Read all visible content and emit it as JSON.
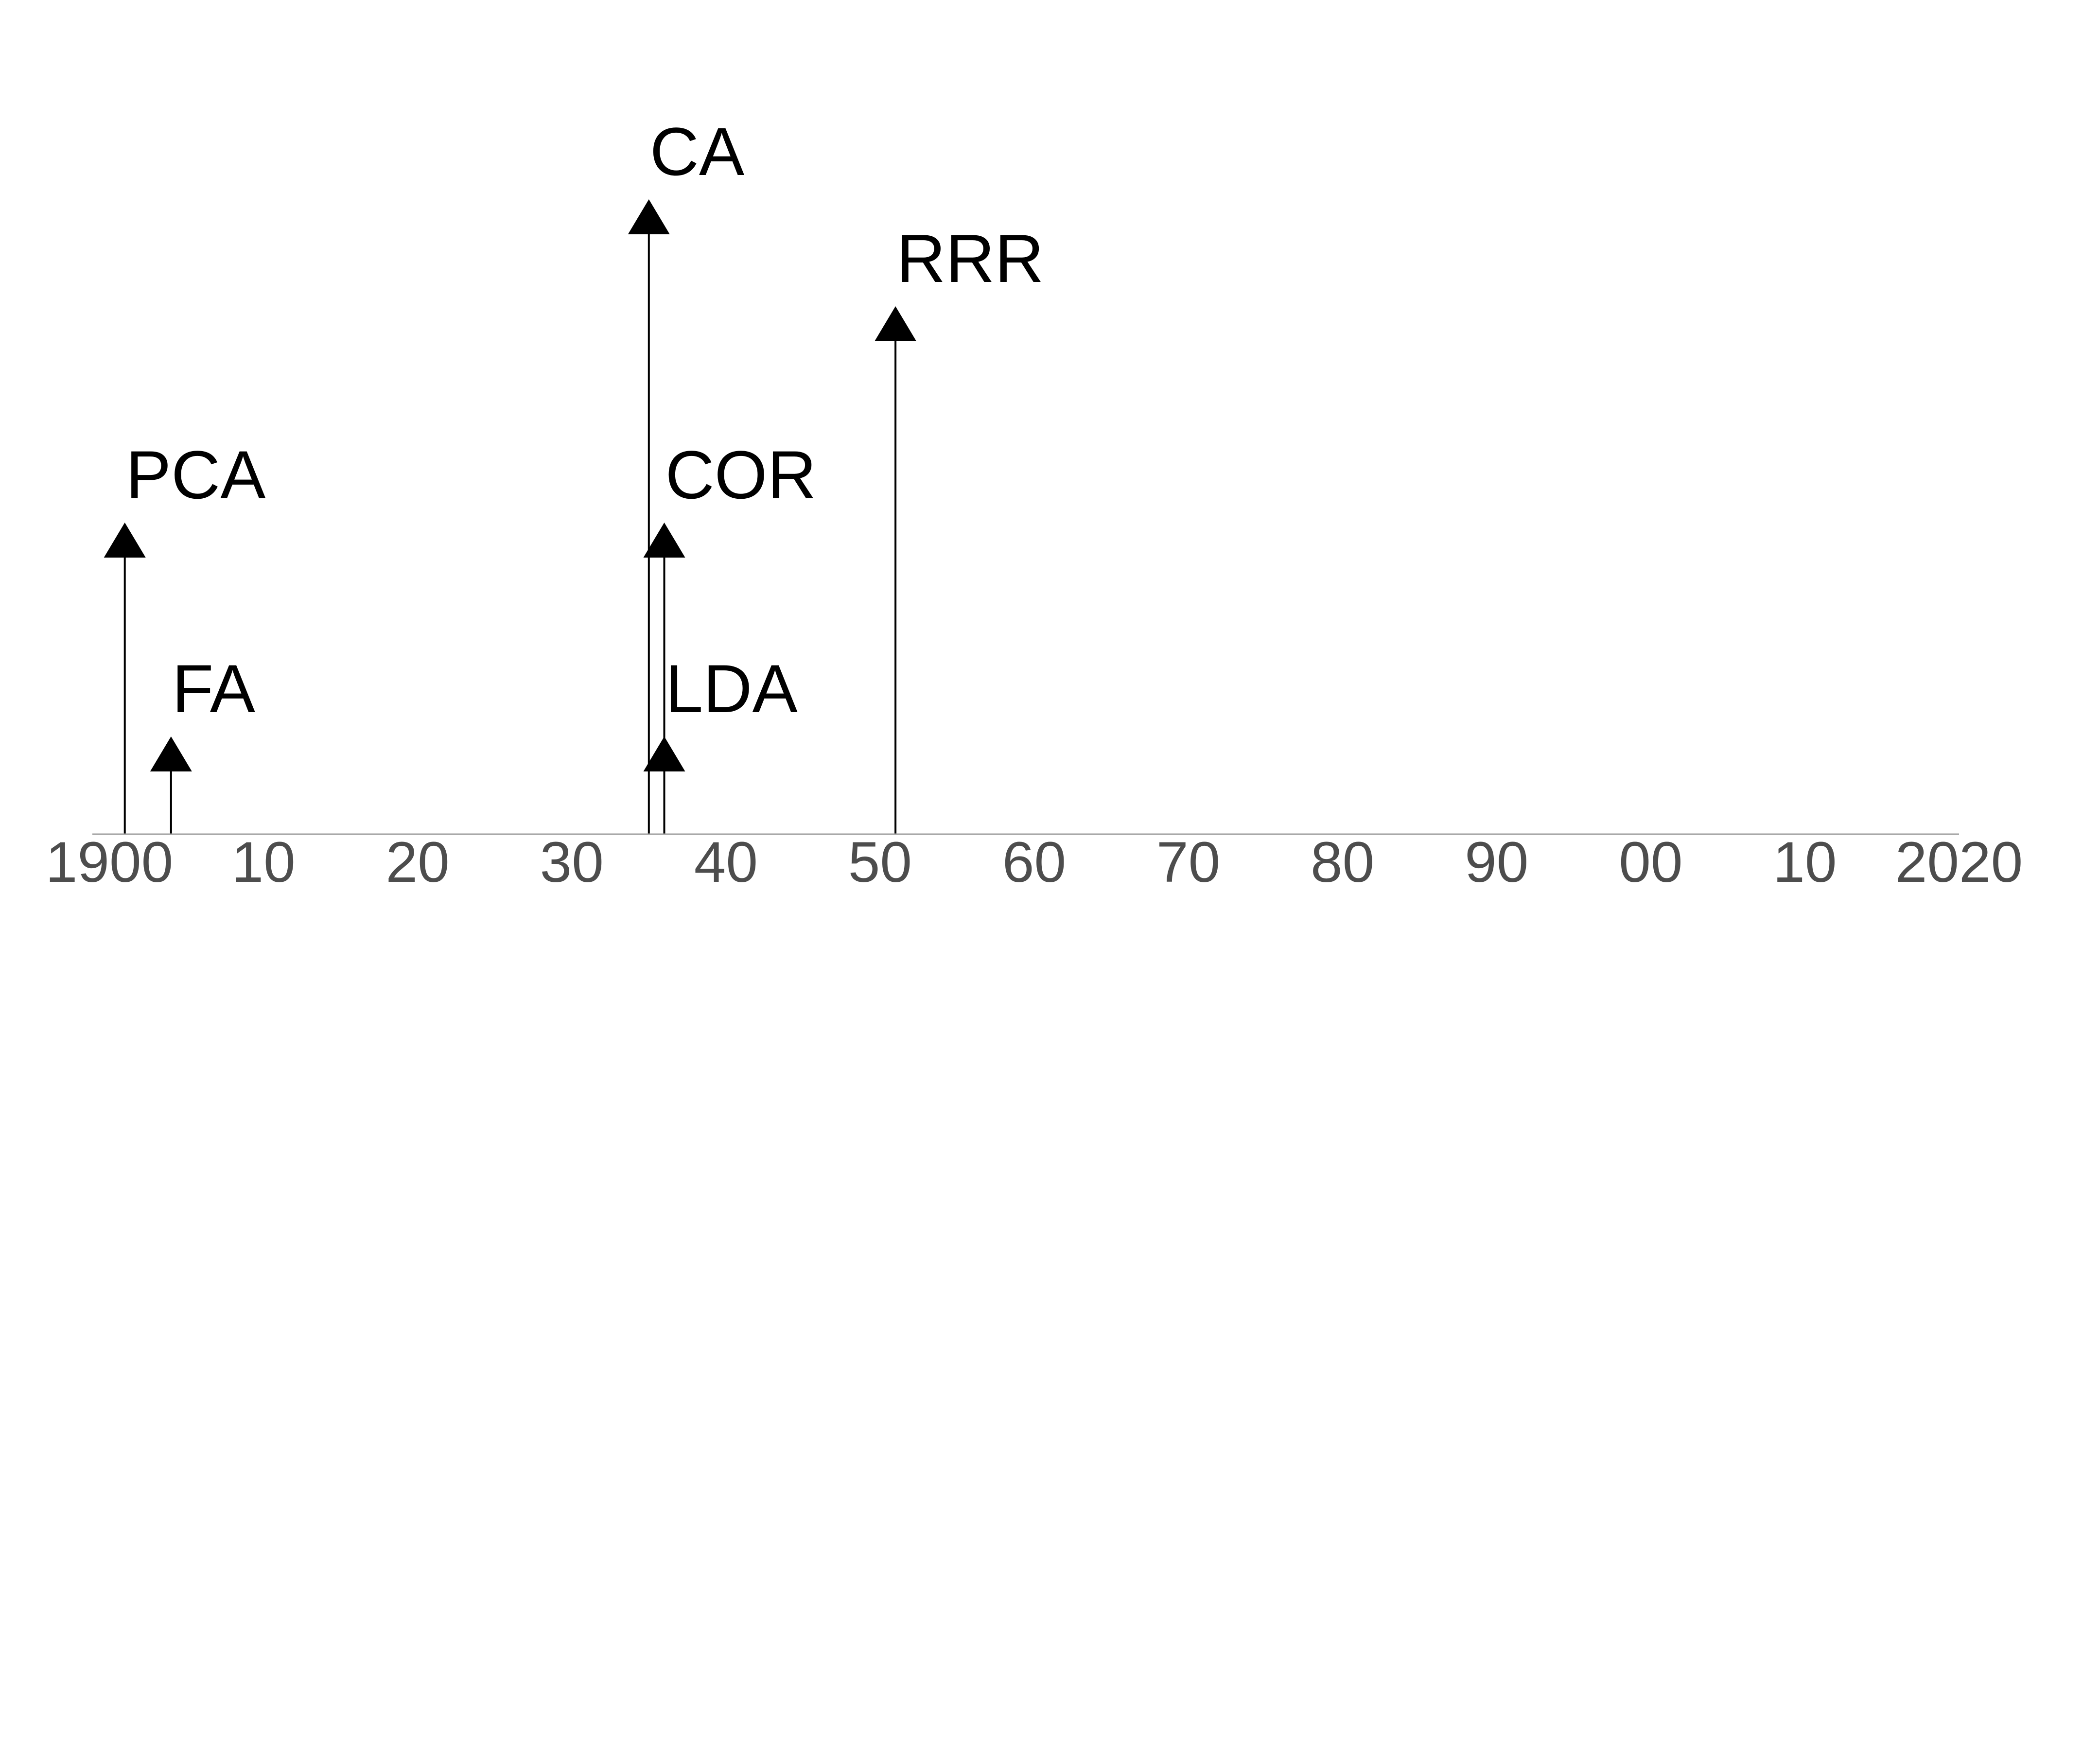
{
  "chart_data": {
    "type": "timeline",
    "title": "",
    "xlabel": "",
    "ylabel": "",
    "xlim": [
      1900,
      2020
    ],
    "x_ticks": [
      {
        "value": 1900,
        "label": "1900"
      },
      {
        "value": 1910,
        "label": "10"
      },
      {
        "value": 1920,
        "label": "20"
      },
      {
        "value": 1930,
        "label": "30"
      },
      {
        "value": 1940,
        "label": "40"
      },
      {
        "value": 1950,
        "label": "50"
      },
      {
        "value": 1960,
        "label": "60"
      },
      {
        "value": 1970,
        "label": "70"
      },
      {
        "value": 1980,
        "label": "80"
      },
      {
        "value": 1990,
        "label": "90"
      },
      {
        "value": 2000,
        "label": "00"
      },
      {
        "value": 2010,
        "label": "10"
      },
      {
        "value": 2020,
        "label": "2020"
      }
    ],
    "y_levels": 4,
    "grid": false,
    "legend": "none",
    "marker": "triangle-arrow",
    "line_color": "#000000",
    "axis_color": "#a0a0a0",
    "tick_label_color": "#4d4d4d",
    "events": [
      {
        "label": "PCA",
        "year": 1901,
        "level": 2
      },
      {
        "label": "FA",
        "year": 1904,
        "level": 1
      },
      {
        "label": "CA",
        "year": 1935,
        "level": 4
      },
      {
        "label": "COR",
        "year": 1936,
        "level": 2
      },
      {
        "label": "LDA",
        "year": 1936,
        "level": 1
      },
      {
        "label": "RRR",
        "year": 1951,
        "level": 3
      }
    ]
  }
}
